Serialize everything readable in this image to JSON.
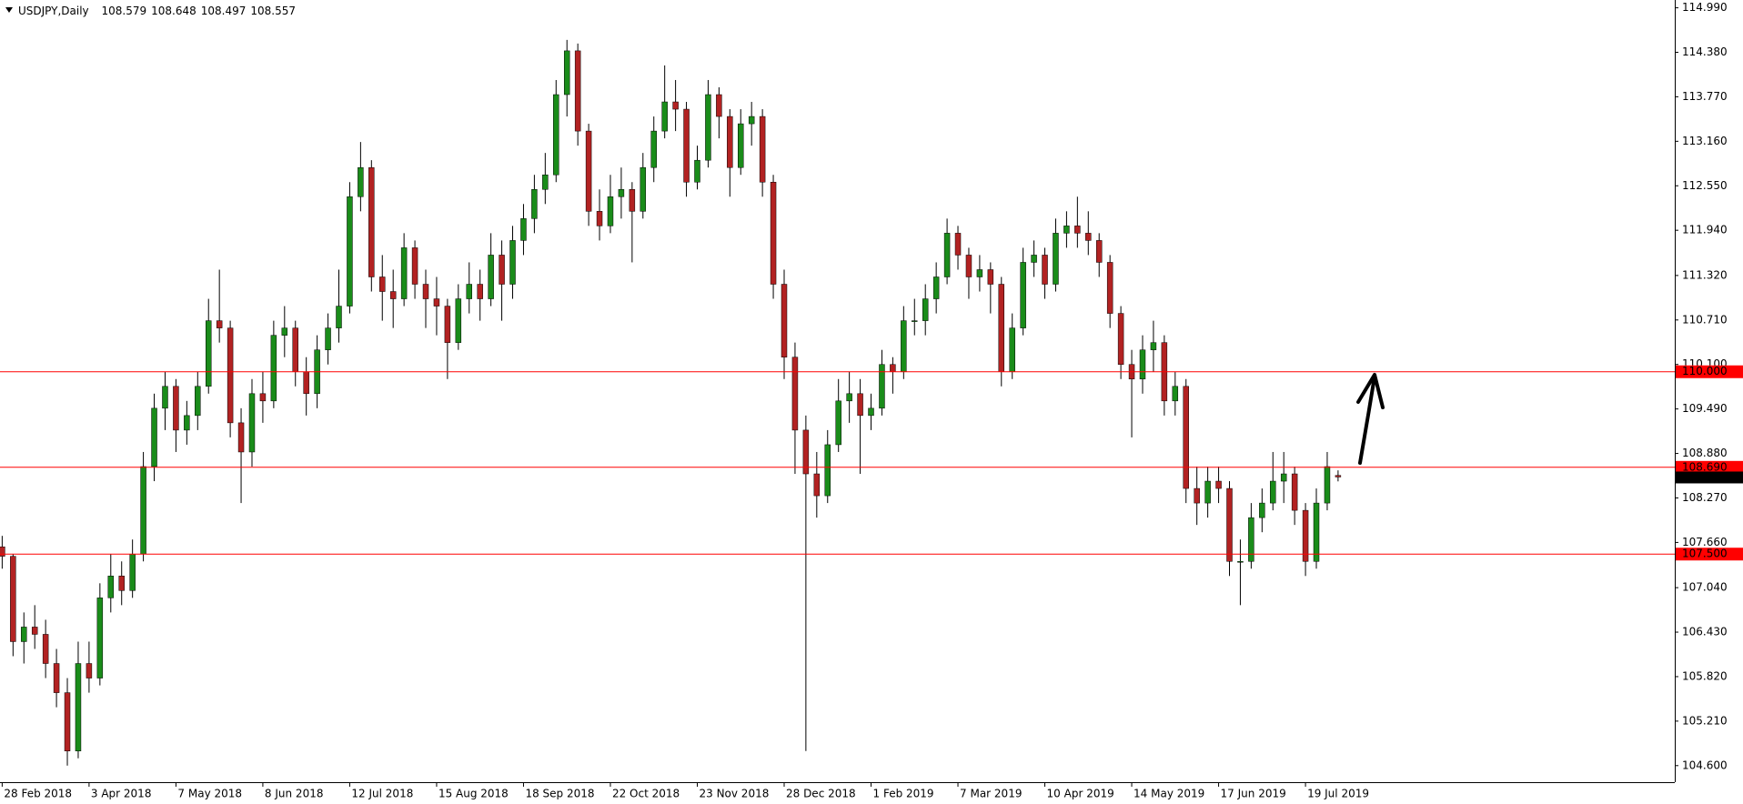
{
  "chart_data": {
    "type": "candlestick",
    "title": "USDJPY,Daily",
    "header_values": [
      "108.579",
      "108.648",
      "108.497",
      "108.557"
    ],
    "bull_color": "#1a8c1a",
    "bear_color": "#b22222",
    "wick_color": "#000000",
    "line_color": "#ff0000",
    "xlim": [
      -0.2,
      154.0
    ],
    "xticks": [
      {
        "value": 0,
        "label": "28 Feb 2018"
      },
      {
        "value": 8,
        "label": "3 Apr 2018"
      },
      {
        "value": 16,
        "label": "7 May 2018"
      },
      {
        "value": 24,
        "label": "8 Jun 2018"
      },
      {
        "value": 32,
        "label": "12 Jul 2018"
      },
      {
        "value": 40,
        "label": "15 Aug 2018"
      },
      {
        "value": 48,
        "label": "18 Sep 2018"
      },
      {
        "value": 56,
        "label": "22 Oct 2018"
      },
      {
        "value": 64,
        "label": "23 Nov 2018"
      },
      {
        "value": 72,
        "label": "28 Dec 2018"
      },
      {
        "value": 80,
        "label": "1 Feb 2019"
      },
      {
        "value": 88,
        "label": "7 Mar 2019"
      },
      {
        "value": 96,
        "label": "10 Apr 2019"
      },
      {
        "value": 104,
        "label": "14 May 2019"
      },
      {
        "value": 112,
        "label": "17 Jun 2019"
      },
      {
        "value": 120,
        "label": "19 Jul 2019"
      }
    ],
    "ylim": [
      104.373,
      115.097
    ],
    "yticks": [
      {
        "value": 114.99,
        "label": "114.990"
      },
      {
        "value": 114.38,
        "label": "114.380"
      },
      {
        "value": 113.77,
        "label": "113.770"
      },
      {
        "value": 113.16,
        "label": "113.160"
      },
      {
        "value": 112.55,
        "label": "112.550"
      },
      {
        "value": 111.94,
        "label": "111.940"
      },
      {
        "value": 111.32,
        "label": "111.320"
      },
      {
        "value": 110.71,
        "label": "110.710"
      },
      {
        "value": 110.1,
        "label": "110.100"
      },
      {
        "value": 109.49,
        "label": "109.490"
      },
      {
        "value": 108.88,
        "label": "108.880"
      },
      {
        "value": 108.27,
        "label": "108.270"
      },
      {
        "value": 107.66,
        "label": "107.660"
      },
      {
        "value": 107.04,
        "label": "107.040"
      },
      {
        "value": 106.43,
        "label": "106.430"
      },
      {
        "value": 105.82,
        "label": "105.820"
      },
      {
        "value": 105.21,
        "label": "105.210"
      },
      {
        "value": 104.6,
        "label": "104.600"
      }
    ],
    "hlines": [
      {
        "value": 110,
        "label": "110.000"
      },
      {
        "value": 108.69,
        "label": "108.690"
      },
      {
        "value": 107.5,
        "label": "107.500"
      }
    ],
    "last_price": {
      "value": 108.557,
      "label": "108.557"
    },
    "ohlc": [
      [
        107.6,
        107.75,
        107.3,
        107.47
      ],
      [
        107.47,
        107.5,
        106.1,
        106.3
      ],
      [
        106.3,
        106.7,
        106.0,
        106.5
      ],
      [
        106.5,
        106.8,
        106.2,
        106.4
      ],
      [
        106.4,
        106.6,
        105.8,
        106.0
      ],
      [
        106.0,
        106.2,
        105.4,
        105.6
      ],
      [
        105.6,
        105.8,
        104.6,
        104.8
      ],
      [
        104.8,
        106.3,
        104.7,
        106.0
      ],
      [
        106.0,
        106.3,
        105.6,
        105.8
      ],
      [
        105.8,
        107.1,
        105.7,
        106.9
      ],
      [
        106.9,
        107.5,
        106.7,
        107.2
      ],
      [
        107.2,
        107.4,
        106.8,
        107.0
      ],
      [
        107.0,
        107.7,
        106.9,
        107.5
      ],
      [
        107.5,
        108.9,
        107.4,
        108.7
      ],
      [
        108.7,
        109.7,
        108.5,
        109.5
      ],
      [
        109.5,
        110.0,
        109.2,
        109.8
      ],
      [
        109.8,
        109.9,
        108.9,
        109.2
      ],
      [
        109.2,
        109.6,
        109.0,
        109.4
      ],
      [
        109.4,
        110.0,
        109.2,
        109.8
      ],
      [
        109.8,
        111.0,
        109.7,
        110.7
      ],
      [
        110.7,
        111.4,
        110.4,
        110.6
      ],
      [
        110.6,
        110.7,
        109.1,
        109.3
      ],
      [
        109.3,
        109.5,
        108.2,
        108.9
      ],
      [
        108.9,
        109.9,
        108.7,
        109.7
      ],
      [
        109.7,
        110.0,
        109.3,
        109.6
      ],
      [
        109.6,
        110.7,
        109.5,
        110.5
      ],
      [
        110.5,
        110.9,
        110.2,
        110.6
      ],
      [
        110.6,
        110.7,
        109.8,
        110.0
      ],
      [
        110.0,
        110.2,
        109.4,
        109.7
      ],
      [
        109.7,
        110.5,
        109.5,
        110.3
      ],
      [
        110.3,
        110.8,
        110.1,
        110.6
      ],
      [
        110.6,
        111.4,
        110.4,
        110.9
      ],
      [
        110.9,
        112.6,
        110.8,
        112.4
      ],
      [
        112.4,
        113.15,
        112.2,
        112.8
      ],
      [
        112.8,
        112.9,
        111.1,
        111.3
      ],
      [
        111.3,
        111.6,
        110.7,
        111.1
      ],
      [
        111.1,
        111.4,
        110.6,
        111.0
      ],
      [
        111.0,
        111.9,
        110.9,
        111.7
      ],
      [
        111.7,
        111.8,
        111.0,
        111.2
      ],
      [
        111.2,
        111.4,
        110.6,
        111.0
      ],
      [
        111.0,
        111.3,
        110.5,
        110.9
      ],
      [
        110.9,
        111.0,
        109.9,
        110.4
      ],
      [
        110.4,
        111.2,
        110.3,
        111.0
      ],
      [
        111.0,
        111.5,
        110.8,
        111.2
      ],
      [
        111.2,
        111.4,
        110.7,
        111.0
      ],
      [
        111.0,
        111.9,
        110.9,
        111.6
      ],
      [
        111.6,
        111.8,
        110.7,
        111.2
      ],
      [
        111.2,
        112.0,
        111.0,
        111.8
      ],
      [
        111.8,
        112.3,
        111.6,
        112.1
      ],
      [
        112.1,
        112.7,
        111.9,
        112.5
      ],
      [
        112.5,
        113.0,
        112.3,
        112.7
      ],
      [
        112.7,
        114.0,
        112.6,
        113.8
      ],
      [
        113.8,
        114.55,
        113.5,
        114.4
      ],
      [
        114.4,
        114.5,
        113.1,
        113.3
      ],
      [
        113.3,
        113.4,
        112.0,
        112.2
      ],
      [
        112.2,
        112.5,
        111.8,
        112.0
      ],
      [
        112.0,
        112.7,
        111.9,
        112.4
      ],
      [
        112.4,
        112.8,
        112.1,
        112.5
      ],
      [
        112.5,
        112.6,
        111.5,
        112.2
      ],
      [
        112.2,
        113.0,
        112.1,
        112.8
      ],
      [
        112.8,
        113.5,
        112.6,
        113.3
      ],
      [
        113.3,
        114.2,
        113.2,
        113.7
      ],
      [
        113.7,
        114.0,
        113.3,
        113.6
      ],
      [
        113.6,
        113.7,
        112.4,
        112.6
      ],
      [
        112.6,
        113.1,
        112.5,
        112.9
      ],
      [
        112.9,
        114.0,
        112.8,
        113.8
      ],
      [
        113.8,
        113.9,
        113.2,
        113.5
      ],
      [
        113.5,
        113.6,
        112.4,
        112.8
      ],
      [
        112.8,
        113.6,
        112.7,
        113.4
      ],
      [
        113.4,
        113.7,
        113.1,
        113.5
      ],
      [
        113.5,
        113.6,
        112.4,
        112.6
      ],
      [
        112.6,
        112.7,
        111.0,
        111.2
      ],
      [
        111.2,
        111.4,
        109.9,
        110.2
      ],
      [
        110.2,
        110.4,
        108.6,
        109.2
      ],
      [
        109.2,
        109.4,
        104.8,
        108.6
      ],
      [
        108.6,
        108.9,
        108.0,
        108.3
      ],
      [
        108.3,
        109.2,
        108.2,
        109.0
      ],
      [
        109.0,
        109.9,
        108.9,
        109.6
      ],
      [
        109.6,
        110.0,
        109.3,
        109.7
      ],
      [
        109.7,
        109.9,
        108.6,
        109.4
      ],
      [
        109.4,
        109.7,
        109.2,
        109.5
      ],
      [
        109.5,
        110.3,
        109.4,
        110.1
      ],
      [
        110.1,
        110.2,
        109.7,
        110.0
      ],
      [
        110.0,
        110.9,
        109.9,
        110.7
      ],
      [
        110.7,
        111.0,
        110.5,
        110.7
      ],
      [
        110.7,
        111.2,
        110.5,
        111.0
      ],
      [
        111.0,
        111.5,
        110.8,
        111.3
      ],
      [
        111.3,
        112.1,
        111.2,
        111.9
      ],
      [
        111.9,
        112.0,
        111.4,
        111.6
      ],
      [
        111.6,
        111.7,
        111.0,
        111.3
      ],
      [
        111.3,
        111.6,
        111.1,
        111.4
      ],
      [
        111.4,
        111.5,
        110.8,
        111.2
      ],
      [
        111.2,
        111.3,
        109.8,
        110.0
      ],
      [
        110.0,
        110.8,
        109.9,
        110.6
      ],
      [
        110.6,
        111.7,
        110.5,
        111.5
      ],
      [
        111.5,
        111.8,
        111.3,
        111.6
      ],
      [
        111.6,
        111.7,
        111.0,
        111.2
      ],
      [
        111.2,
        112.1,
        111.1,
        111.9
      ],
      [
        111.9,
        112.2,
        111.7,
        112.0
      ],
      [
        112.0,
        112.4,
        111.7,
        111.9
      ],
      [
        111.9,
        112.2,
        111.6,
        111.8
      ],
      [
        111.8,
        111.9,
        111.3,
        111.5
      ],
      [
        111.5,
        111.6,
        110.6,
        110.8
      ],
      [
        110.8,
        110.9,
        109.9,
        110.1
      ],
      [
        110.1,
        110.3,
        109.1,
        109.9
      ],
      [
        109.9,
        110.5,
        109.7,
        110.3
      ],
      [
        110.3,
        110.7,
        110.0,
        110.4
      ],
      [
        110.4,
        110.5,
        109.4,
        109.6
      ],
      [
        109.6,
        110.0,
        109.4,
        109.8
      ],
      [
        109.8,
        109.9,
        108.2,
        108.4
      ],
      [
        108.4,
        108.7,
        107.9,
        108.2
      ],
      [
        108.2,
        108.7,
        108.0,
        108.5
      ],
      [
        108.5,
        108.7,
        108.2,
        108.4
      ],
      [
        108.4,
        108.5,
        107.2,
        107.4
      ],
      [
        107.4,
        107.7,
        106.8,
        107.4
      ],
      [
        107.4,
        108.2,
        107.3,
        108.0
      ],
      [
        108.0,
        108.4,
        107.8,
        108.2
      ],
      [
        108.2,
        108.9,
        108.1,
        108.5
      ],
      [
        108.5,
        108.9,
        108.2,
        108.6
      ],
      [
        108.6,
        108.7,
        107.9,
        108.1
      ],
      [
        108.1,
        108.2,
        107.2,
        107.4
      ],
      [
        107.4,
        108.4,
        107.3,
        108.2
      ],
      [
        108.2,
        108.9,
        108.1,
        108.7
      ],
      [
        108.579,
        108.648,
        108.497,
        108.557
      ]
    ]
  }
}
